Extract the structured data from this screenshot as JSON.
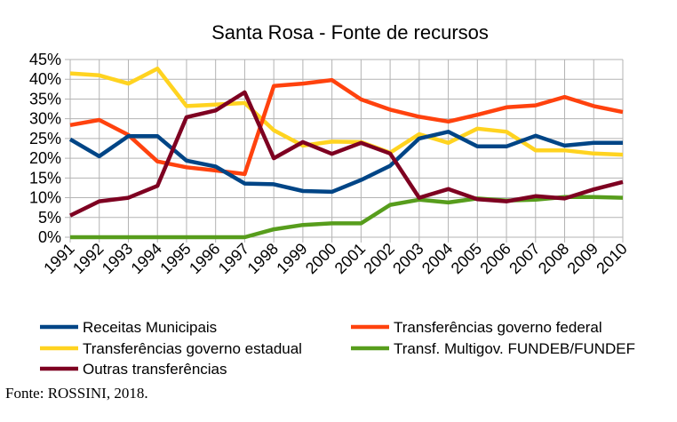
{
  "chart_data": {
    "type": "line",
    "title": "Santa Rosa - Fonte de recursos",
    "xlabel": "",
    "ylabel": "",
    "x": [
      "1991",
      "1992",
      "1993",
      "1994",
      "1995",
      "1996",
      "1997",
      "1998",
      "1999",
      "2000",
      "2001",
      "2002",
      "2003",
      "2004",
      "2005",
      "2006",
      "2007",
      "2008",
      "2009",
      "2010"
    ],
    "ylim": [
      0,
      45
    ],
    "yticks": [
      "0%",
      "5%",
      "10%",
      "15%",
      "20%",
      "25%",
      "30%",
      "35%",
      "40%",
      "45%"
    ],
    "ytick_values": [
      0,
      5,
      10,
      15,
      20,
      25,
      30,
      35,
      40,
      45
    ],
    "grid": true,
    "legend_position": "bottom",
    "series": [
      {
        "name": "Receitas Municipais",
        "color": "#004586",
        "values": [
          24.8,
          20.5,
          25.6,
          25.6,
          19.4,
          17.9,
          13.6,
          13.4,
          11.7,
          11.5,
          14.5,
          18.1,
          25.0,
          26.7,
          23.0,
          23.0,
          25.7,
          23.2,
          23.9,
          23.9
        ]
      },
      {
        "name": "Transferências governo federal",
        "color": "#ff420e",
        "values": [
          28.4,
          29.7,
          25.9,
          19.2,
          17.7,
          16.9,
          16.0,
          38.3,
          38.9,
          39.8,
          34.9,
          32.3,
          30.5,
          29.3,
          31.0,
          32.9,
          33.4,
          35.5,
          33.2,
          31.7
        ]
      },
      {
        "name": "Transferências governo estadual",
        "color": "#ffd320",
        "values": [
          41.5,
          41.0,
          38.9,
          42.7,
          33.2,
          33.6,
          34.0,
          27.1,
          23.2,
          24.2,
          24.1,
          21.4,
          26.1,
          23.9,
          27.5,
          26.7,
          22.0,
          22.0,
          21.2,
          20.9
        ]
      },
      {
        "name": "Transf. Multigov. FUNDEB/FUNDEF",
        "color": "#579d1c",
        "values": [
          0,
          0,
          0,
          0,
          0,
          0,
          0,
          2.0,
          3.1,
          3.5,
          3.5,
          8.2,
          9.5,
          8.8,
          9.8,
          9.3,
          9.5,
          10.2,
          10.2,
          10.0
        ]
      },
      {
        "name": "Outras transferências",
        "color": "#7e0021",
        "values": [
          5.5,
          9.1,
          10.0,
          13.0,
          30.4,
          32.1,
          36.7,
          20.0,
          24.1,
          21.1,
          23.9,
          21.2,
          10.0,
          12.2,
          9.6,
          9.1,
          10.4,
          9.8,
          12.1,
          14.0
        ]
      }
    ],
    "legend_order": [
      0,
      1,
      2,
      3,
      4
    ]
  },
  "source_note": "Fonte: ROSSINI, 2018."
}
